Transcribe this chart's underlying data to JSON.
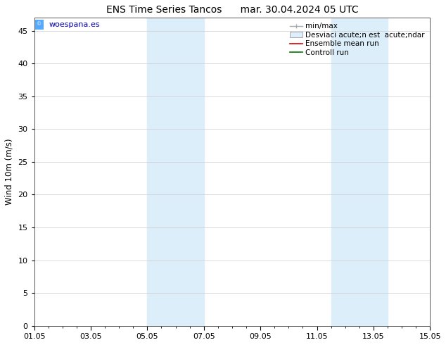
{
  "title": "ENS Time Series Tancos      mar. 30.04.2024 05 UTC",
  "ylabel": "Wind 10m (m/s)",
  "xlabel": "",
  "ylim": [
    0,
    47
  ],
  "yticks": [
    0,
    5,
    10,
    15,
    20,
    25,
    30,
    35,
    40,
    45
  ],
  "x_start": 0,
  "x_end": 14,
  "xtick_labels": [
    "01.05",
    "03.05",
    "05.05",
    "07.05",
    "09.05",
    "11.05",
    "13.05",
    "15.05"
  ],
  "xtick_positions": [
    0,
    2,
    4,
    6,
    8,
    10,
    12,
    14
  ],
  "bg_color": "#ffffff",
  "plot_bg_color": "#ffffff",
  "shaded_bands": [
    {
      "x_start": 4.0,
      "x_end": 6.0,
      "color": "#dceefa"
    },
    {
      "x_start": 10.5,
      "x_end": 12.5,
      "color": "#dceefa"
    }
  ],
  "grid_color": "#cccccc",
  "legend_label_minmax": "min/max",
  "legend_label_std": "Desviaci acute;n est  acute;ndar",
  "legend_label_ens": "Ensemble mean run",
  "legend_label_ctrl": "Controll run",
  "watermark": "© woespana.es",
  "watermark_color": "#0000cc",
  "watermark_icon_color": "#55aaff",
  "title_fontsize": 10,
  "axis_fontsize": 8.5,
  "tick_fontsize": 8,
  "legend_fontsize": 7.5
}
